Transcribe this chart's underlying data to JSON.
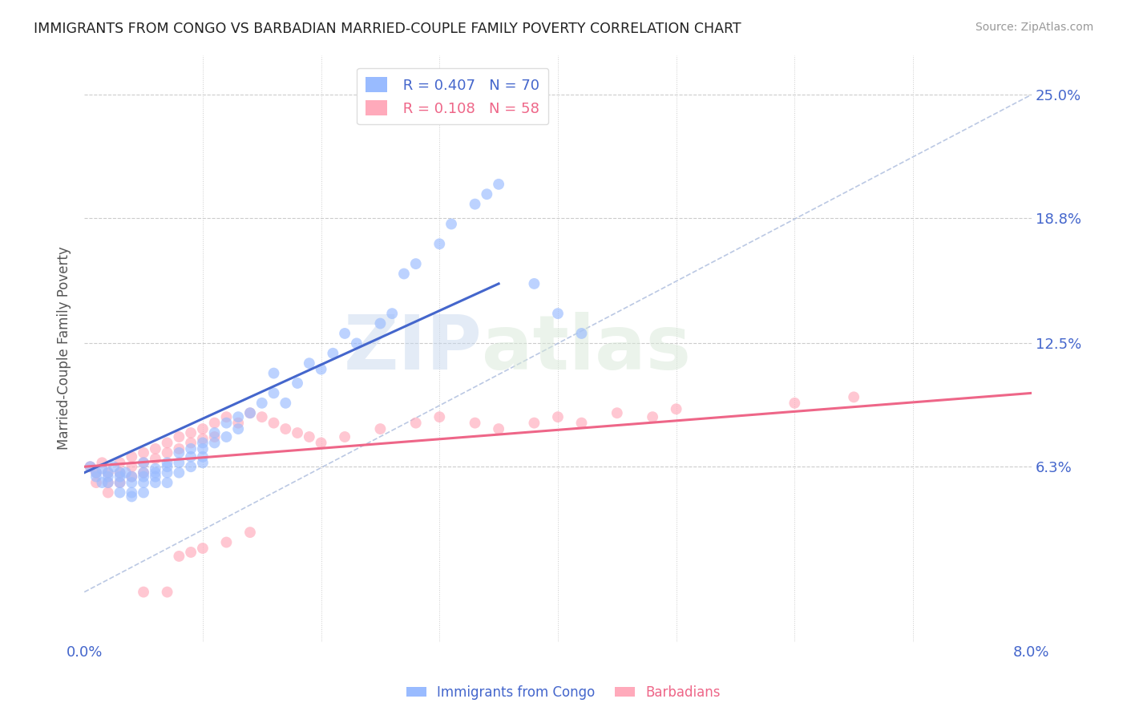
{
  "title": "IMMIGRANTS FROM CONGO VS BARBADIAN MARRIED-COUPLE FAMILY POVERTY CORRELATION CHART",
  "source": "Source: ZipAtlas.com",
  "ylabel": "Married-Couple Family Poverty",
  "xlim": [
    0.0,
    0.08
  ],
  "ylim": [
    -0.025,
    0.27
  ],
  "ytick_labels": [
    "6.3%",
    "12.5%",
    "18.8%",
    "25.0%"
  ],
  "ytick_positions": [
    0.063,
    0.125,
    0.188,
    0.25
  ],
  "color_blue": "#99bbff",
  "color_pink": "#ffaabb",
  "color_blue_line": "#4466cc",
  "color_pink_line": "#ee6688",
  "color_diag": "#aabbdd",
  "watermark_zip": "ZIP",
  "watermark_atlas": "atlas",
  "congo_x": [
    0.0005,
    0.001,
    0.001,
    0.0015,
    0.0015,
    0.002,
    0.002,
    0.002,
    0.0025,
    0.003,
    0.003,
    0.003,
    0.003,
    0.0035,
    0.004,
    0.004,
    0.004,
    0.004,
    0.005,
    0.005,
    0.005,
    0.005,
    0.005,
    0.006,
    0.006,
    0.006,
    0.006,
    0.007,
    0.007,
    0.007,
    0.007,
    0.008,
    0.008,
    0.008,
    0.009,
    0.009,
    0.009,
    0.01,
    0.01,
    0.01,
    0.01,
    0.011,
    0.011,
    0.012,
    0.012,
    0.013,
    0.013,
    0.014,
    0.015,
    0.016,
    0.016,
    0.017,
    0.018,
    0.019,
    0.02,
    0.021,
    0.022,
    0.023,
    0.025,
    0.026,
    0.027,
    0.028,
    0.03,
    0.031,
    0.033,
    0.034,
    0.035,
    0.038,
    0.04,
    0.042
  ],
  "congo_y": [
    0.063,
    0.06,
    0.058,
    0.062,
    0.055,
    0.06,
    0.058,
    0.055,
    0.063,
    0.06,
    0.058,
    0.055,
    0.05,
    0.06,
    0.058,
    0.055,
    0.05,
    0.048,
    0.06,
    0.058,
    0.065,
    0.055,
    0.05,
    0.062,
    0.06,
    0.058,
    0.055,
    0.065,
    0.063,
    0.06,
    0.055,
    0.07,
    0.065,
    0.06,
    0.072,
    0.068,
    0.063,
    0.075,
    0.072,
    0.068,
    0.065,
    0.08,
    0.075,
    0.085,
    0.078,
    0.088,
    0.082,
    0.09,
    0.095,
    0.1,
    0.11,
    0.095,
    0.105,
    0.115,
    0.112,
    0.12,
    0.13,
    0.125,
    0.135,
    0.14,
    0.16,
    0.165,
    0.175,
    0.185,
    0.195,
    0.2,
    0.205,
    0.155,
    0.14,
    0.13
  ],
  "barb_x": [
    0.0005,
    0.001,
    0.001,
    0.0015,
    0.002,
    0.002,
    0.002,
    0.003,
    0.003,
    0.003,
    0.004,
    0.004,
    0.004,
    0.005,
    0.005,
    0.005,
    0.006,
    0.006,
    0.007,
    0.007,
    0.008,
    0.008,
    0.009,
    0.009,
    0.01,
    0.01,
    0.011,
    0.011,
    0.012,
    0.013,
    0.014,
    0.015,
    0.016,
    0.017,
    0.018,
    0.019,
    0.02,
    0.022,
    0.025,
    0.028,
    0.03,
    0.033,
    0.035,
    0.038,
    0.04,
    0.042,
    0.045,
    0.048,
    0.05,
    0.06,
    0.065,
    0.005,
    0.007,
    0.008,
    0.009,
    0.01,
    0.012,
    0.014
  ],
  "barb_y": [
    0.063,
    0.06,
    0.055,
    0.065,
    0.06,
    0.055,
    0.05,
    0.065,
    0.06,
    0.055,
    0.068,
    0.063,
    0.058,
    0.07,
    0.065,
    0.06,
    0.072,
    0.067,
    0.075,
    0.07,
    0.078,
    0.072,
    0.08,
    0.075,
    0.082,
    0.077,
    0.085,
    0.078,
    0.088,
    0.085,
    0.09,
    0.088,
    0.085,
    0.082,
    0.08,
    0.078,
    0.075,
    0.078,
    0.082,
    0.085,
    0.088,
    0.085,
    0.082,
    0.085,
    0.088,
    0.085,
    0.09,
    0.088,
    0.092,
    0.095,
    0.098,
    0.0,
    0.0,
    0.018,
    0.02,
    0.022,
    0.025,
    0.03
  ],
  "congo_line_x": [
    0.0,
    0.035
  ],
  "congo_line_y": [
    0.06,
    0.155
  ],
  "barb_line_x": [
    0.0,
    0.08
  ],
  "barb_line_y": [
    0.063,
    0.1
  ]
}
